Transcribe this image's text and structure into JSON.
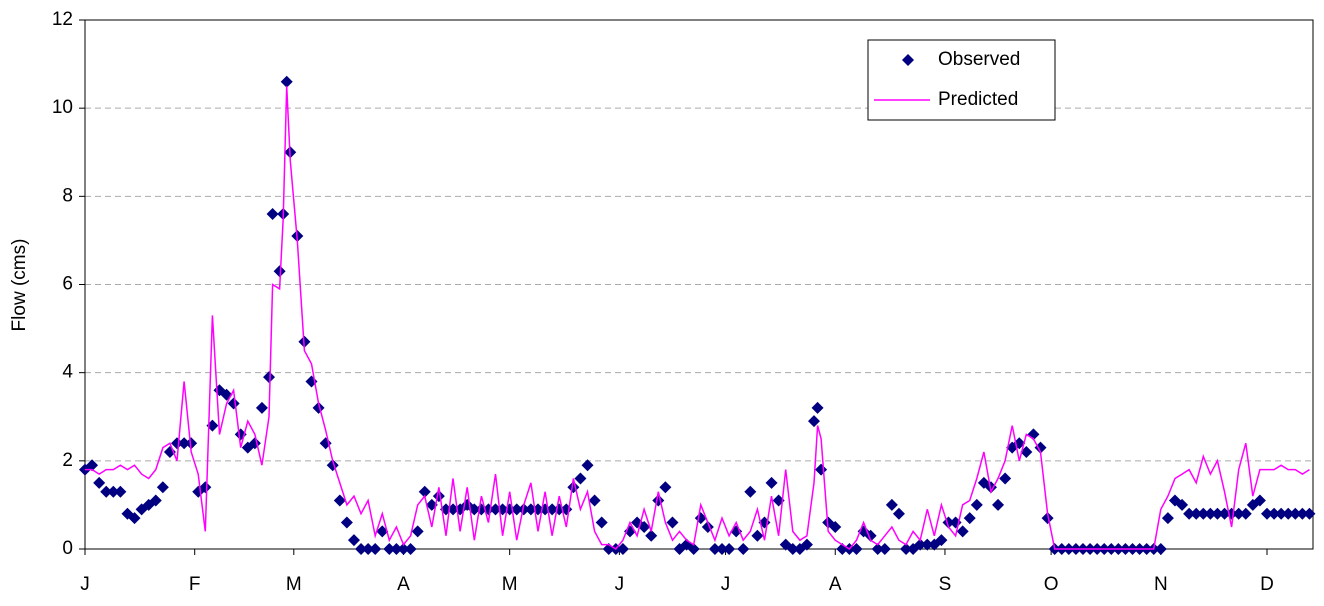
{
  "chart_data": {
    "type": "scatter",
    "ylabel": "Flow (cms)",
    "x": [
      0,
      2,
      4,
      6,
      8,
      10,
      12,
      14,
      16,
      18,
      20,
      22,
      24,
      26,
      28,
      30,
      32,
      34,
      36,
      38,
      40,
      42,
      44,
      46,
      48,
      50,
      52,
      53,
      55,
      56,
      57,
      58,
      60,
      62,
      64,
      66,
      68,
      70,
      72,
      74,
      76,
      78,
      80,
      82,
      84,
      86,
      88,
      90,
      92,
      94,
      96,
      98,
      100,
      102,
      104,
      106,
      108,
      110,
      112,
      114,
      116,
      118,
      120,
      122,
      124,
      126,
      128,
      130,
      132,
      134,
      136,
      138,
      140,
      142,
      144,
      146,
      148,
      150,
      152,
      154,
      156,
      158,
      160,
      162,
      164,
      166,
      168,
      170,
      172,
      174,
      176,
      178,
      180,
      182,
      184,
      186,
      188,
      190,
      192,
      194,
      196,
      198,
      200,
      202,
      204,
      206,
      207,
      208,
      210,
      212,
      214,
      216,
      218,
      220,
      222,
      224,
      226,
      228,
      230,
      232,
      234,
      236,
      238,
      240,
      242,
      244,
      246,
      248,
      250,
      252,
      254,
      256,
      258,
      260,
      262,
      264,
      266,
      268,
      270,
      272,
      274,
      276,
      278,
      280,
      282,
      284,
      286,
      288,
      290,
      292,
      294,
      296,
      298,
      300,
      302,
      304,
      306,
      308,
      310,
      312,
      314,
      316,
      318,
      320,
      322,
      324,
      326,
      328,
      330,
      332,
      334,
      336,
      338,
      340,
      342,
      344,
      346
    ],
    "series": [
      {
        "name": "Observed",
        "color": "#000080",
        "style": "diamond",
        "values": [
          1.8,
          1.9,
          1.5,
          1.3,
          1.3,
          1.3,
          0.8,
          0.7,
          0.9,
          1.0,
          1.1,
          1.4,
          2.2,
          2.4,
          2.4,
          2.4,
          1.3,
          1.4,
          2.8,
          3.6,
          3.5,
          3.3,
          2.6,
          2.3,
          2.4,
          3.2,
          3.9,
          7.6,
          6.3,
          7.6,
          10.6,
          9.0,
          7.1,
          4.7,
          3.8,
          3.2,
          2.4,
          1.9,
          1.1,
          0.6,
          0.2,
          0,
          0,
          0,
          0.4,
          0,
          0,
          0,
          0,
          0.4,
          1.3,
          1.0,
          1.2,
          0.9,
          0.9,
          0.9,
          1.0,
          0.9,
          0.9,
          0.9,
          0.9,
          0.9,
          0.9,
          0.9,
          0.9,
          0.9,
          0.9,
          0.9,
          0.9,
          0.9,
          0.9,
          1.4,
          1.6,
          1.9,
          1.1,
          0.6,
          0,
          0,
          0,
          0.4,
          0.6,
          0.5,
          0.3,
          1.1,
          1.4,
          0.6,
          0,
          0.1,
          0,
          0.7,
          0.5,
          0,
          0,
          0,
          0.4,
          0,
          1.3,
          0.3,
          0.6,
          1.5,
          1.1,
          0.1,
          0,
          0,
          0.1,
          2.9,
          3.2,
          1.8,
          0.6,
          0.5,
          0,
          0,
          0,
          0.4,
          0.3,
          0,
          0,
          1.0,
          0.8,
          0,
          0,
          0.1,
          0.1,
          0.1,
          0.2,
          0.6,
          0.6,
          0.4,
          0.7,
          1.0,
          1.5,
          1.4,
          1.0,
          1.6,
          2.3,
          2.4,
          2.2,
          2.6,
          2.3,
          0.7,
          0,
          0,
          0,
          0,
          0,
          0,
          0,
          0,
          0,
          0,
          0,
          0,
          0,
          0,
          0,
          0,
          0.7,
          1.1,
          1.0,
          0.8,
          0.8,
          0.8,
          0.8,
          0.8,
          0.8,
          0.8,
          0.8,
          0.8,
          1.0,
          1.1,
          0.8,
          0.8,
          0.8,
          0.8,
          0.8,
          0.8,
          0.8
        ]
      },
      {
        "name": "Predicted",
        "color": "#ff00ff",
        "style": "line",
        "values": [
          1.8,
          1.8,
          1.7,
          1.8,
          1.8,
          1.9,
          1.8,
          1.9,
          1.7,
          1.6,
          1.8,
          2.3,
          2.4,
          2.0,
          3.8,
          2.2,
          1.7,
          0.4,
          5.3,
          2.6,
          3.3,
          3.6,
          2.3,
          2.9,
          2.6,
          1.9,
          3.0,
          6.0,
          5.9,
          7.5,
          10.5,
          8.8,
          7.0,
          4.5,
          4.2,
          3.3,
          2.7,
          2.0,
          1.5,
          1.0,
          1.2,
          0.8,
          1.1,
          0.3,
          0.8,
          0.2,
          0.5,
          0.1,
          0.3,
          1.0,
          1.2,
          0.5,
          1.4,
          0.3,
          1.6,
          0.4,
          1.4,
          0.2,
          1.2,
          0.6,
          1.7,
          0.3,
          1.3,
          0.2,
          1.0,
          1.5,
          0.4,
          1.3,
          0.3,
          1.2,
          0.5,
          1.6,
          0.9,
          1.3,
          0.4,
          0.1,
          0.1,
          0,
          0.2,
          0.6,
          0.3,
          0.9,
          0.4,
          1.3,
          0.6,
          0.2,
          0.4,
          0.2,
          0.1,
          1.0,
          0.6,
          0.2,
          0.7,
          0.3,
          0.6,
          0.2,
          0.4,
          0.9,
          0.2,
          1.2,
          0.3,
          1.8,
          0.4,
          0.2,
          0.3,
          1.5,
          2.8,
          2.5,
          0.4,
          0.2,
          0.1,
          0,
          0.2,
          0.6,
          0.2,
          0.1,
          0.3,
          0.5,
          0.2,
          0.1,
          0.4,
          0.2,
          0.9,
          0.3,
          1.0,
          0.5,
          0.3,
          1.0,
          1.1,
          1.6,
          2.2,
          1.3,
          1.6,
          2.0,
          2.8,
          2.0,
          2.6,
          2.5,
          2.2,
          0.8,
          0,
          0,
          0,
          0,
          0,
          0,
          0,
          0,
          0,
          0,
          0,
          0,
          0,
          0,
          0,
          0.9,
          1.2,
          1.6,
          1.7,
          1.8,
          1.5,
          2.1,
          1.7,
          2.0,
          1.3,
          0.5,
          1.8,
          2.4,
          1.2,
          1.8,
          1.8,
          1.8,
          1.9,
          1.8,
          1.8,
          1.7,
          1.8
        ]
      }
    ],
    "xlim": [
      0,
      347
    ],
    "xticks": [
      {
        "value": 0,
        "label": "J"
      },
      {
        "value": 31,
        "label": "F"
      },
      {
        "value": 59,
        "label": "M"
      },
      {
        "value": 90,
        "label": "A"
      },
      {
        "value": 120,
        "label": "M"
      },
      {
        "value": 151,
        "label": "J"
      },
      {
        "value": 181,
        "label": "J"
      },
      {
        "value": 212,
        "label": "A"
      },
      {
        "value": 243,
        "label": "S"
      },
      {
        "value": 273,
        "label": "O"
      },
      {
        "value": 304,
        "label": "N"
      },
      {
        "value": 334,
        "label": "D"
      }
    ],
    "ylim": [
      0,
      12
    ],
    "yticks": [
      0,
      2,
      4,
      6,
      8,
      10,
      12
    ],
    "grid": true,
    "legend": "upper right"
  }
}
